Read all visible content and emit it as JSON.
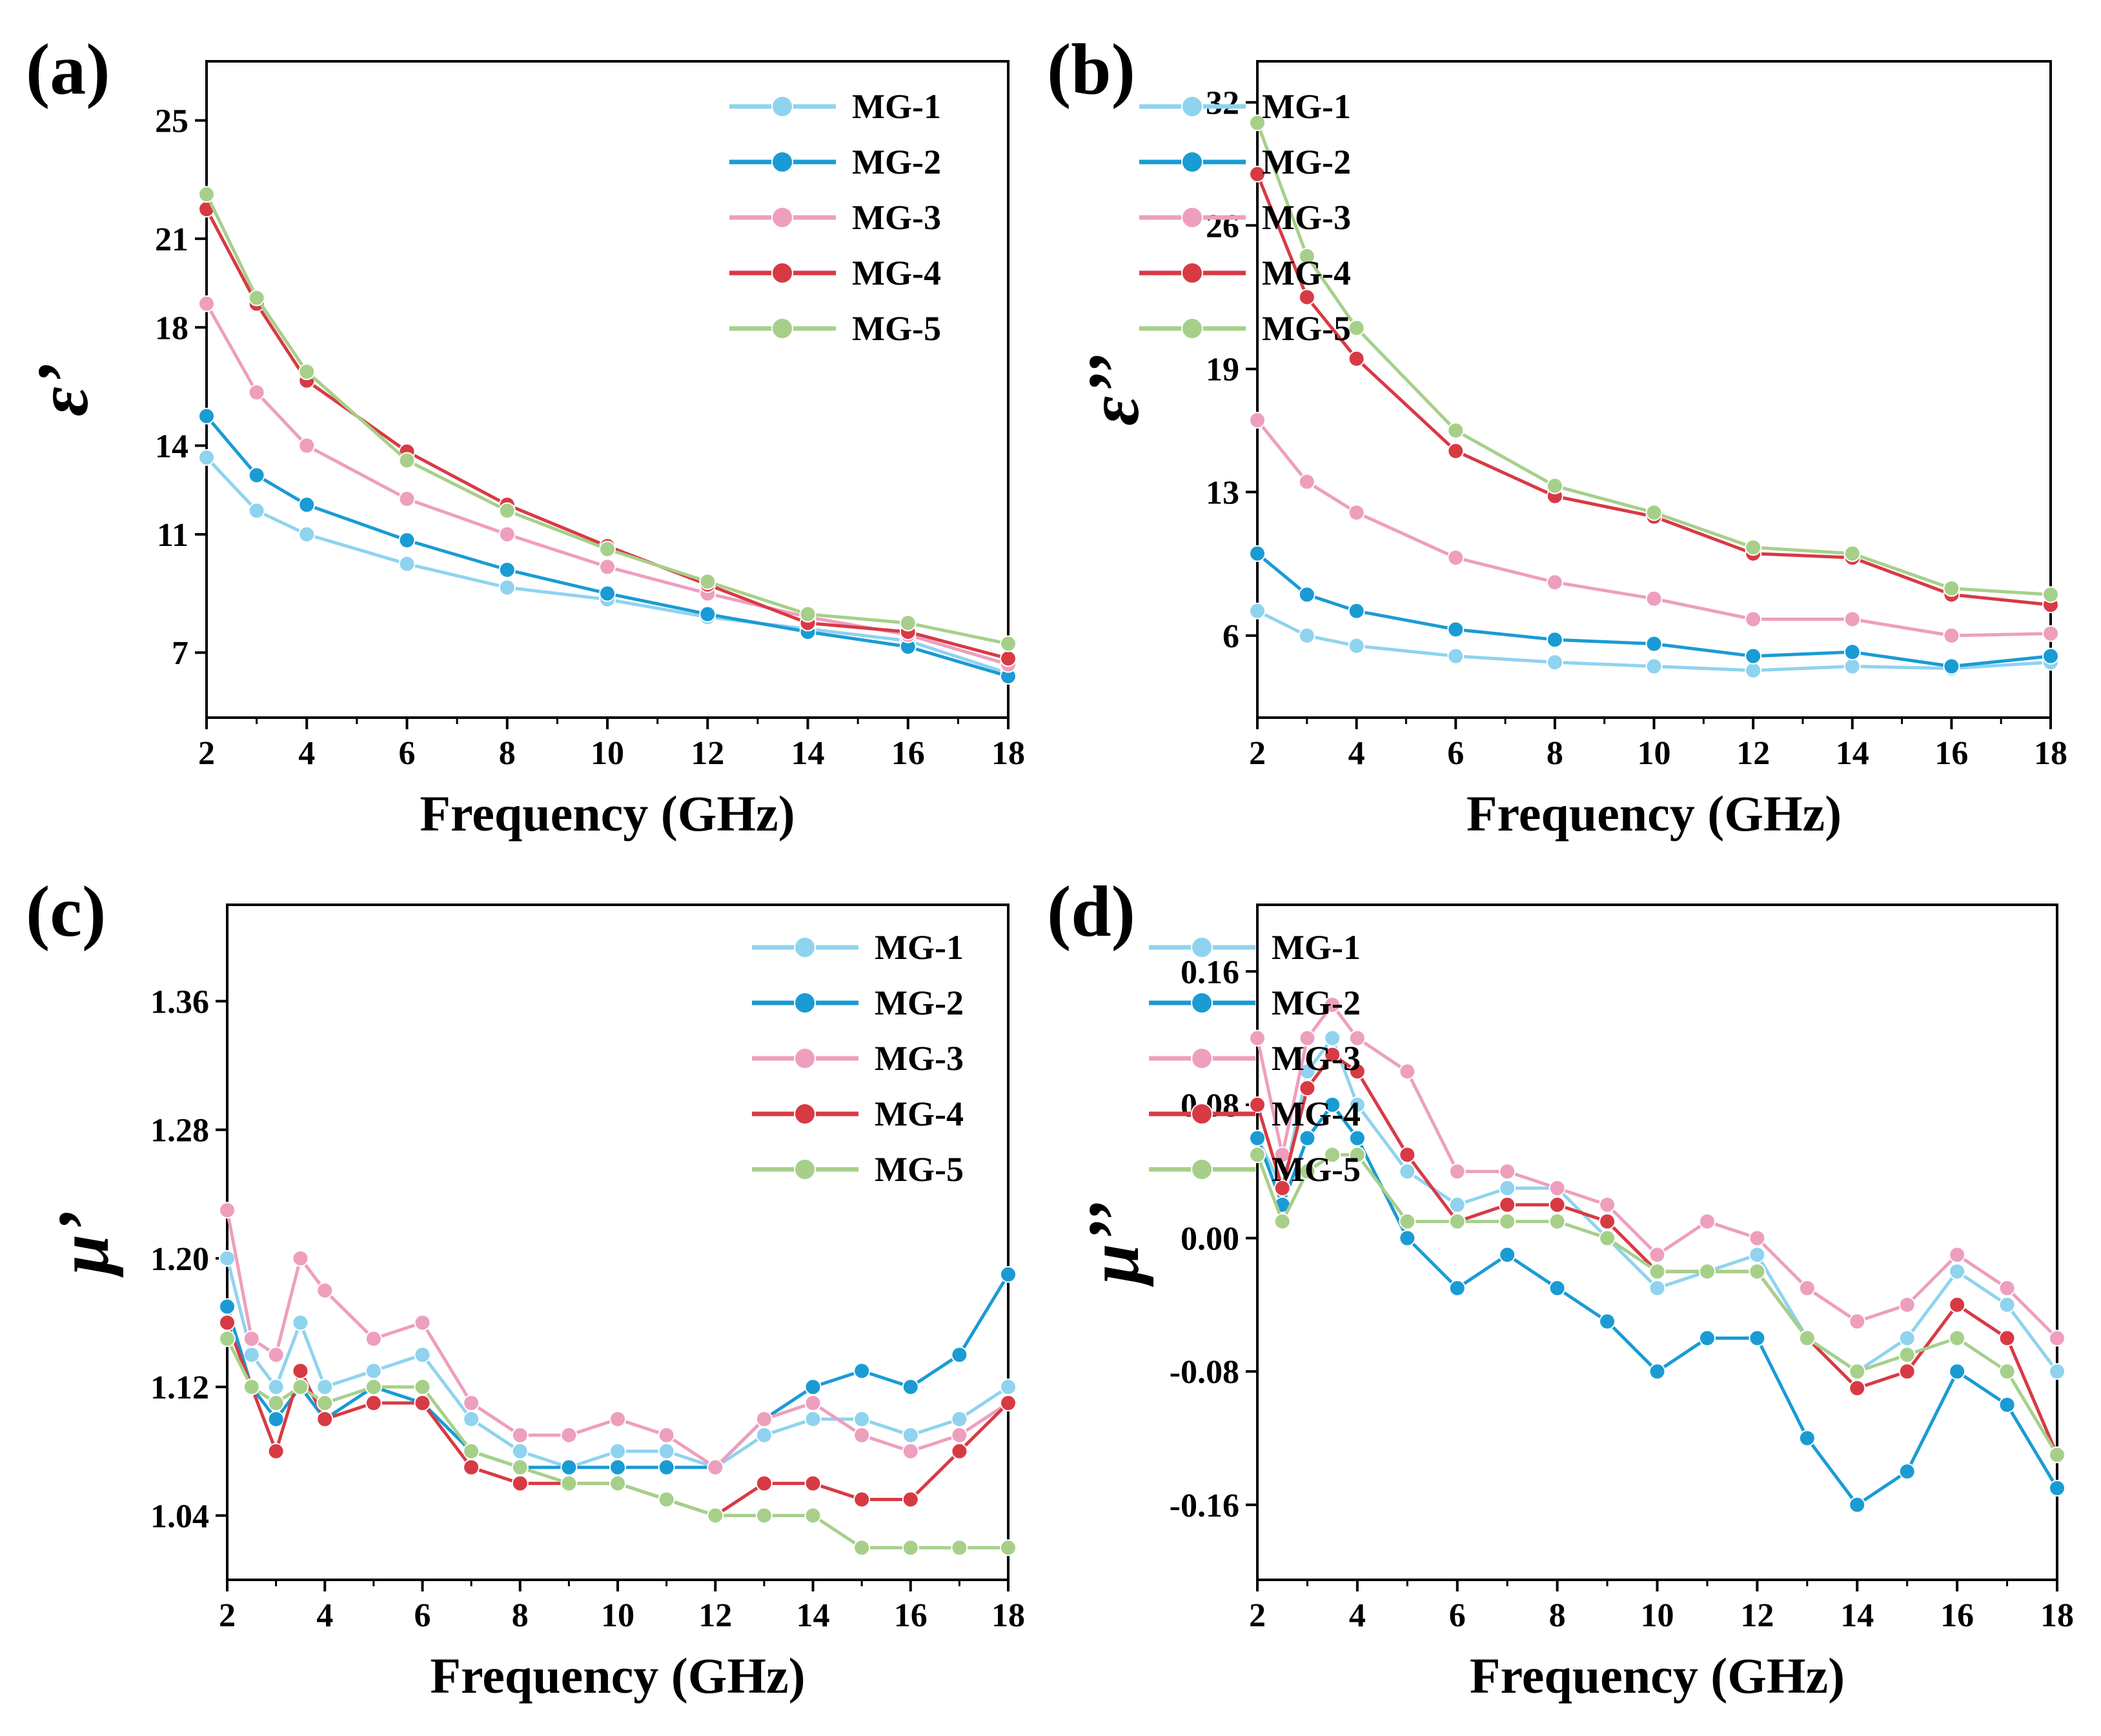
{
  "colors": {
    "MG-1": "#8fd3ef",
    "MG-2": "#1a9bd4",
    "MG-3": "#ee9fbd",
    "MG-4": "#d83a44",
    "MG-5": "#a6d08a"
  },
  "chart_data": [
    {
      "panel": "(a)",
      "type": "line",
      "xlabel": "Frequency (GHz)",
      "ylabel": "ε’",
      "xlim": [
        2,
        18
      ],
      "ylim": [
        4.8,
        27
      ],
      "xticks": [
        2,
        4,
        6,
        8,
        10,
        12,
        14,
        16,
        18
      ],
      "yticks": [
        7,
        11,
        14,
        18,
        21,
        25
      ],
      "legend_position": "top-right",
      "x": [
        2,
        3,
        4,
        6,
        8,
        10,
        12,
        14,
        16,
        18
      ],
      "series": [
        {
          "name": "MG-1",
          "values": [
            13.6,
            11.8,
            11.0,
            10.0,
            9.2,
            8.8,
            8.2,
            7.8,
            7.4,
            6.3
          ]
        },
        {
          "name": "MG-2",
          "values": [
            15.0,
            13.0,
            12.0,
            10.8,
            9.8,
            9.0,
            8.3,
            7.7,
            7.2,
            6.2
          ]
        },
        {
          "name": "MG-3",
          "values": [
            18.8,
            15.8,
            14.0,
            12.2,
            11.0,
            9.9,
            9.0,
            8.2,
            7.6,
            6.6
          ]
        },
        {
          "name": "MG-4",
          "values": [
            22.0,
            18.8,
            16.2,
            13.8,
            12.0,
            10.6,
            9.3,
            8.0,
            7.7,
            6.8
          ]
        },
        {
          "name": "MG-5",
          "values": [
            22.5,
            19.0,
            16.5,
            13.5,
            11.8,
            10.5,
            9.4,
            8.3,
            8.0,
            7.3
          ]
        }
      ]
    },
    {
      "panel": "(b)",
      "type": "line",
      "xlabel": "Frequency (GHz)",
      "ylabel": "ε’’",
      "xlim": [
        2,
        18
      ],
      "ylim": [
        2,
        34
      ],
      "xticks": [
        2,
        4,
        6,
        8,
        10,
        12,
        14,
        16,
        18
      ],
      "yticks": [
        6,
        13,
        19,
        26,
        32
      ],
      "legend_position": "top-right",
      "x": [
        2,
        3,
        4,
        6,
        8,
        10,
        12,
        14,
        16,
        18
      ],
      "series": [
        {
          "name": "MG-1",
          "values": [
            7.2,
            6.0,
            5.5,
            5.0,
            4.7,
            4.5,
            4.3,
            4.5,
            4.4,
            4.7
          ]
        },
        {
          "name": "MG-2",
          "values": [
            10.0,
            8.0,
            7.2,
            6.3,
            5.8,
            5.6,
            5.0,
            5.2,
            4.5,
            5.0
          ]
        },
        {
          "name": "MG-3",
          "values": [
            16.5,
            13.5,
            12.0,
            9.8,
            8.6,
            7.8,
            6.8,
            6.8,
            6.0,
            6.1
          ]
        },
        {
          "name": "MG-4",
          "values": [
            28.5,
            22.5,
            19.5,
            15.0,
            12.8,
            11.8,
            10.0,
            9.8,
            8.0,
            7.5
          ]
        },
        {
          "name": "MG-5",
          "values": [
            31.0,
            24.5,
            21.0,
            16.0,
            13.3,
            12.0,
            10.3,
            10.0,
            8.3,
            8.0
          ]
        }
      ]
    },
    {
      "panel": "(c)",
      "type": "line",
      "xlabel": "Frequency (GHz)",
      "ylabel": "μ’",
      "xlim": [
        2,
        18
      ],
      "ylim": [
        1.0,
        1.42
      ],
      "xticks": [
        2,
        4,
        6,
        8,
        10,
        12,
        14,
        16,
        18
      ],
      "yticks": [
        1.04,
        1.12,
        1.2,
        1.28,
        1.36
      ],
      "legend_position": "top-right",
      "x": [
        2,
        2.5,
        3,
        3.5,
        4,
        5,
        6,
        7,
        8,
        9,
        10,
        11,
        12,
        13,
        14,
        15,
        16,
        17,
        18
      ],
      "series": [
        {
          "name": "MG-1",
          "values": [
            1.2,
            1.14,
            1.12,
            1.16,
            1.12,
            1.13,
            1.14,
            1.1,
            1.08,
            1.07,
            1.08,
            1.08,
            1.07,
            1.09,
            1.1,
            1.1,
            1.09,
            1.1,
            1.12
          ]
        },
        {
          "name": "MG-2",
          "values": [
            1.17,
            1.12,
            1.1,
            1.12,
            1.1,
            1.12,
            1.11,
            1.08,
            1.07,
            1.07,
            1.07,
            1.07,
            1.07,
            1.1,
            1.12,
            1.13,
            1.12,
            1.14,
            1.19
          ]
        },
        {
          "name": "MG-3",
          "values": [
            1.23,
            1.15,
            1.14,
            1.2,
            1.18,
            1.15,
            1.16,
            1.11,
            1.09,
            1.09,
            1.1,
            1.09,
            1.07,
            1.1,
            1.11,
            1.09,
            1.08,
            1.09,
            1.11
          ]
        },
        {
          "name": "MG-4",
          "values": [
            1.16,
            1.12,
            1.08,
            1.13,
            1.1,
            1.11,
            1.11,
            1.07,
            1.06,
            1.06,
            1.06,
            1.05,
            1.04,
            1.06,
            1.06,
            1.05,
            1.05,
            1.08,
            1.11
          ]
        },
        {
          "name": "MG-5",
          "values": [
            1.15,
            1.12,
            1.11,
            1.12,
            1.11,
            1.12,
            1.12,
            1.08,
            1.07,
            1.06,
            1.06,
            1.05,
            1.04,
            1.04,
            1.04,
            1.02,
            1.02,
            1.02,
            1.02
          ]
        }
      ]
    },
    {
      "panel": "(d)",
      "type": "line",
      "xlabel": "Frequency (GHz)",
      "ylabel": "μ’’",
      "xlim": [
        2,
        18
      ],
      "ylim": [
        -0.205,
        0.2
      ],
      "xticks": [
        2,
        4,
        6,
        8,
        10,
        12,
        14,
        16,
        18
      ],
      "yticks": [
        -0.16,
        -0.08,
        0.0,
        0.08,
        0.16
      ],
      "legend_position": "top-right",
      "x": [
        2,
        2.5,
        3,
        3.5,
        4,
        5,
        6,
        7,
        8,
        9,
        10,
        11,
        12,
        13,
        14,
        15,
        16,
        17,
        18
      ],
      "series": [
        {
          "name": "MG-1",
          "values": [
            0.06,
            0.03,
            0.1,
            0.12,
            0.08,
            0.04,
            0.02,
            0.03,
            0.03,
            0.0,
            -0.03,
            -0.02,
            -0.01,
            -0.06,
            -0.08,
            -0.06,
            -0.02,
            -0.04,
            -0.08
          ]
        },
        {
          "name": "MG-2",
          "values": [
            0.06,
            0.02,
            0.06,
            0.08,
            0.06,
            0.0,
            -0.03,
            -0.01,
            -0.03,
            -0.05,
            -0.08,
            -0.06,
            -0.06,
            -0.12,
            -0.16,
            -0.14,
            -0.08,
            -0.1,
            -0.15
          ]
        },
        {
          "name": "MG-3",
          "values": [
            0.12,
            0.05,
            0.12,
            0.14,
            0.12,
            0.1,
            0.04,
            0.04,
            0.03,
            0.02,
            -0.01,
            0.01,
            0.0,
            -0.03,
            -0.05,
            -0.04,
            -0.01,
            -0.03,
            -0.06
          ]
        },
        {
          "name": "MG-4",
          "values": [
            0.08,
            0.03,
            0.09,
            0.11,
            0.1,
            0.05,
            0.01,
            0.02,
            0.02,
            0.01,
            -0.02,
            -0.02,
            -0.02,
            -0.06,
            -0.09,
            -0.08,
            -0.04,
            -0.06,
            -0.13
          ]
        },
        {
          "name": "MG-5",
          "values": [
            0.05,
            0.01,
            0.04,
            0.05,
            0.05,
            0.01,
            0.01,
            0.01,
            0.01,
            0.0,
            -0.02,
            -0.02,
            -0.02,
            -0.06,
            -0.08,
            -0.07,
            -0.06,
            -0.08,
            -0.13
          ]
        }
      ]
    }
  ]
}
